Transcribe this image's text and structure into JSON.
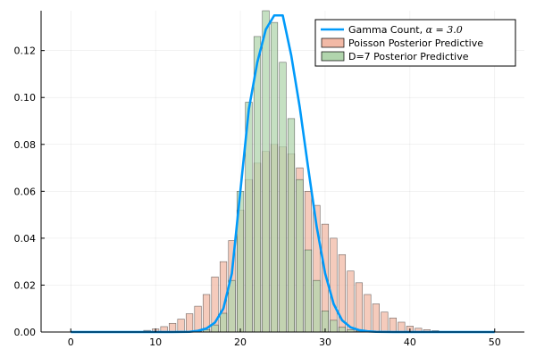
{
  "chart_data": {
    "type": "bar",
    "title": "",
    "xlabel": "",
    "ylabel": "",
    "xlim": [
      -3.5,
      53.5
    ],
    "ylim": [
      0,
      0.137
    ],
    "grid": true,
    "legend_position": "top-right",
    "x_ticks": [
      0,
      10,
      20,
      30,
      40,
      50
    ],
    "x_tick_labels": [
      "0",
      "10",
      "20",
      "30",
      "40",
      "50"
    ],
    "y_ticks": [
      0.0,
      0.02,
      0.04,
      0.06,
      0.08,
      0.1,
      0.12
    ],
    "y_tick_labels": [
      "0.00",
      "0.02",
      "0.04",
      "0.06",
      "0.08",
      "0.10",
      "0.12"
    ],
    "legend": [
      {
        "label": "Gamma Count, ",
        "math": "α = 3.0",
        "style": "line",
        "color": "#009AFA"
      },
      {
        "label": "Poisson Posterior Predictive",
        "style": "bar",
        "color": "#F2B9A6"
      },
      {
        "label": "D=7 Posterior Predictive",
        "style": "bar",
        "color": "#B1D5AD"
      }
    ],
    "series": [
      {
        "name": "Poisson Posterior Predictive",
        "type": "bar",
        "color": "#F2B9A6",
        "x": [
          9,
          10,
          11,
          12,
          13,
          14,
          15,
          16,
          17,
          18,
          19,
          20,
          21,
          22,
          23,
          24,
          25,
          26,
          27,
          28,
          29,
          30,
          31,
          32,
          33,
          34,
          35,
          36,
          37,
          38,
          39,
          40,
          41,
          42,
          43
        ],
        "values": [
          0.0007,
          0.0013,
          0.0023,
          0.0037,
          0.0055,
          0.0078,
          0.011,
          0.016,
          0.0235,
          0.03,
          0.039,
          0.052,
          0.065,
          0.072,
          0.077,
          0.08,
          0.079,
          0.076,
          0.07,
          0.06,
          0.054,
          0.046,
          0.04,
          0.033,
          0.026,
          0.021,
          0.016,
          0.012,
          0.0085,
          0.006,
          0.0042,
          0.0025,
          0.0016,
          0.001,
          0.0006
        ]
      },
      {
        "name": "D=7 Posterior Predictive",
        "type": "bar",
        "color": "#B1D5AD",
        "x": [
          15,
          16,
          17,
          18,
          19,
          20,
          21,
          22,
          23,
          24,
          25,
          26,
          27,
          28,
          29,
          30,
          31,
          32,
          33,
          34
        ],
        "values": [
          0.0003,
          0.001,
          0.003,
          0.008,
          0.022,
          0.06,
          0.098,
          0.126,
          0.137,
          0.132,
          0.115,
          0.091,
          0.065,
          0.035,
          0.022,
          0.009,
          0.005,
          0.002,
          0.001,
          0.0004
        ]
      },
      {
        "name": "Gamma Count, α = 3.0",
        "type": "line",
        "color": "#009AFA",
        "x": [
          0,
          5,
          10,
          12,
          14,
          15,
          16,
          17,
          18,
          19,
          20,
          21,
          22,
          23,
          24,
          25,
          26,
          27,
          28,
          29,
          30,
          31,
          32,
          33,
          34,
          35,
          36,
          38,
          40,
          45,
          50
        ],
        "values": [
          0,
          0,
          0,
          0,
          0.0001,
          0.0005,
          0.0015,
          0.004,
          0.01,
          0.025,
          0.06,
          0.095,
          0.115,
          0.129,
          0.135,
          0.135,
          0.118,
          0.096,
          0.07,
          0.045,
          0.025,
          0.012,
          0.005,
          0.002,
          0.0008,
          0.0003,
          0.0001,
          0,
          0,
          0,
          0
        ]
      }
    ]
  }
}
